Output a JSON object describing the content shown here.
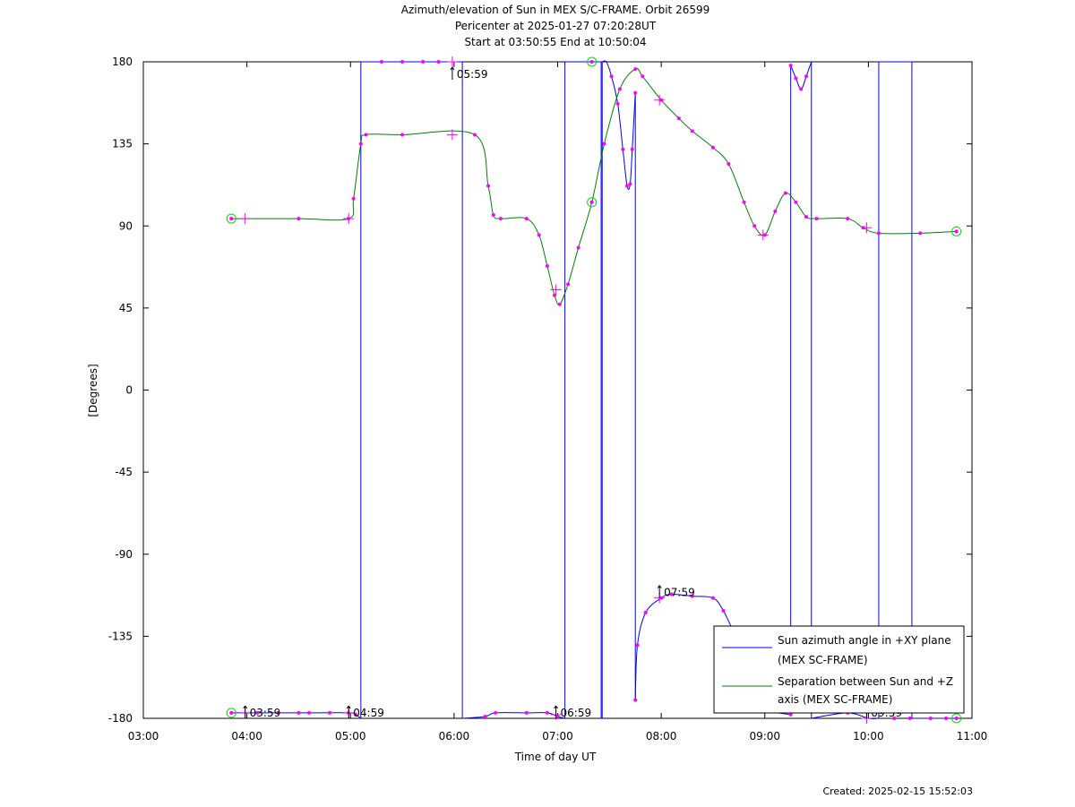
{
  "chart_data": {
    "type": "line",
    "title": "Azimuth/elevation of Sun in MEX S/C-FRAME.  Orbit 26599",
    "subtitle_1": "Pericenter at 2025-01-27 07:20:28UT",
    "subtitle_2": "Start at 03:50:55 End at 10:50:04",
    "xlabel": "Time of day UT",
    "ylabel": "[Degrees]",
    "xlim": [
      3,
      11
    ],
    "ylim": [
      -180,
      180
    ],
    "x_ticks": [
      "03:00",
      "04:00",
      "05:00",
      "06:00",
      "07:00",
      "08:00",
      "09:00",
      "10:00",
      "11:00"
    ],
    "y_ticks": [
      "-180",
      "-135",
      "-90",
      "-45",
      "0",
      "45",
      "90",
      "135",
      "180"
    ],
    "legend_position": "bottom-right",
    "series": [
      {
        "name": "Sun azimuth angle in +XY plane (MEX SC-FRAME)",
        "color": "#0000ff",
        "segments": [
          [
            [
              3.85,
              -177
            ],
            [
              4.5,
              -177
            ],
            [
              4.98,
              -177
            ],
            [
              5.05,
              -178
            ],
            [
              5.1,
              -180
            ]
          ],
          [
            [
              5.1,
              180
            ],
            [
              5.5,
              180
            ],
            [
              6.0,
              180
            ],
            [
              6.08,
              180
            ]
          ],
          [
            [
              6.08,
              -180
            ],
            [
              6.3,
              -179
            ],
            [
              6.4,
              -177
            ],
            [
              6.7,
              -177
            ],
            [
              6.9,
              -177
            ],
            [
              7.0,
              -179
            ],
            [
              7.07,
              -180
            ]
          ],
          [
            [
              7.07,
              180
            ],
            [
              7.3,
              180
            ],
            [
              7.4,
              180
            ],
            [
              7.42,
              180
            ]
          ],
          [
            [
              7.42,
              -180
            ],
            [
              7.43,
              -180
            ]
          ],
          [
            [
              7.43,
              180
            ],
            [
              7.47,
              180
            ],
            [
              7.52,
              172
            ],
            [
              7.58,
              157
            ],
            [
              7.63,
              132
            ],
            [
              7.67,
              112
            ],
            [
              7.7,
              113
            ],
            [
              7.72,
              132
            ],
            [
              7.75,
              163
            ]
          ],
          [
            [
              7.75,
              -170
            ],
            [
              7.77,
              -140
            ],
            [
              7.85,
              -122
            ],
            [
              8.0,
              -114
            ],
            [
              8.1,
              -112
            ],
            [
              8.3,
              -113
            ],
            [
              8.5,
              -114
            ],
            [
              8.6,
              -121
            ],
            [
              8.7,
              -133
            ]
          ],
          [
            [
              9.0,
              -176
            ],
            [
              9.25,
              -178
            ]
          ],
          [
            [
              9.25,
              178
            ],
            [
              9.3,
              171
            ],
            [
              9.35,
              165
            ],
            [
              9.4,
              172
            ],
            [
              9.45,
              180
            ]
          ],
          [
            [
              9.45,
              -180
            ],
            [
              9.8,
              -177
            ],
            [
              10.0,
              -180
            ],
            [
              10.1,
              -180
            ]
          ],
          [
            [
              10.1,
              180
            ],
            [
              10.4,
              180
            ],
            [
              10.42,
              180
            ]
          ],
          [
            [
              10.42,
              -180
            ],
            [
              10.85,
              -180
            ]
          ]
        ]
      },
      {
        "name": "Separation between Sun and +Z axis (MEX SC-FRAME)",
        "color": "#008000",
        "points": [
          [
            3.85,
            94
          ],
          [
            4.5,
            94
          ],
          [
            4.98,
            94
          ],
          [
            5.03,
            105
          ],
          [
            5.1,
            135
          ],
          [
            5.15,
            140
          ],
          [
            5.5,
            140
          ],
          [
            6.2,
            140
          ],
          [
            6.33,
            112
          ],
          [
            6.38,
            96
          ],
          [
            6.45,
            94
          ],
          [
            6.7,
            94
          ],
          [
            6.82,
            85
          ],
          [
            6.9,
            68
          ],
          [
            6.97,
            52
          ],
          [
            7.02,
            47
          ],
          [
            7.1,
            58
          ],
          [
            7.2,
            78
          ],
          [
            7.33,
            103
          ],
          [
            7.45,
            135
          ],
          [
            7.6,
            165
          ],
          [
            7.75,
            176
          ],
          [
            7.82,
            172
          ],
          [
            8.0,
            159
          ],
          [
            8.17,
            149
          ],
          [
            8.3,
            142
          ],
          [
            8.5,
            133
          ],
          [
            8.65,
            124
          ],
          [
            8.8,
            103
          ],
          [
            8.9,
            90
          ],
          [
            9.0,
            85
          ],
          [
            9.1,
            98
          ],
          [
            9.2,
            108
          ],
          [
            9.3,
            103
          ],
          [
            9.4,
            95
          ],
          [
            9.5,
            94
          ],
          [
            9.8,
            94
          ],
          [
            9.95,
            89
          ],
          [
            10.1,
            86
          ],
          [
            10.5,
            86
          ],
          [
            10.85,
            87
          ]
        ]
      }
    ],
    "annotations": [
      {
        "label": "03:59",
        "x": 3.983,
        "y": -180
      },
      {
        "label": "04:59",
        "x": 4.983,
        "y": -180
      },
      {
        "label": "05:59",
        "x": 5.983,
        "y": 180
      },
      {
        "label": "06:59",
        "x": 6.983,
        "y": -180
      },
      {
        "label": "07:59",
        "x": 7.983,
        "y": -114
      },
      {
        "label": "09:59",
        "x": 9.983,
        "y": -180
      }
    ],
    "circle_markers": [
      [
        3.85,
        94
      ],
      [
        3.85,
        -177
      ],
      [
        7.33,
        103
      ],
      [
        7.33,
        180
      ],
      [
        10.85,
        87
      ],
      [
        10.85,
        -180
      ]
    ],
    "hour_markers": [
      [
        3.983,
        94
      ],
      [
        4.983,
        94
      ],
      [
        5.983,
        140
      ],
      [
        6.983,
        55
      ],
      [
        7.983,
        159
      ],
      [
        8.983,
        85
      ],
      [
        9.983,
        89
      ],
      [
        3.983,
        -177
      ],
      [
        4.983,
        -177
      ],
      [
        5.983,
        180
      ],
      [
        6.983,
        -178
      ],
      [
        7.983,
        -114
      ],
      [
        9.983,
        -180
      ]
    ]
  },
  "created": "Created: 2025-02-15 15:52:03"
}
